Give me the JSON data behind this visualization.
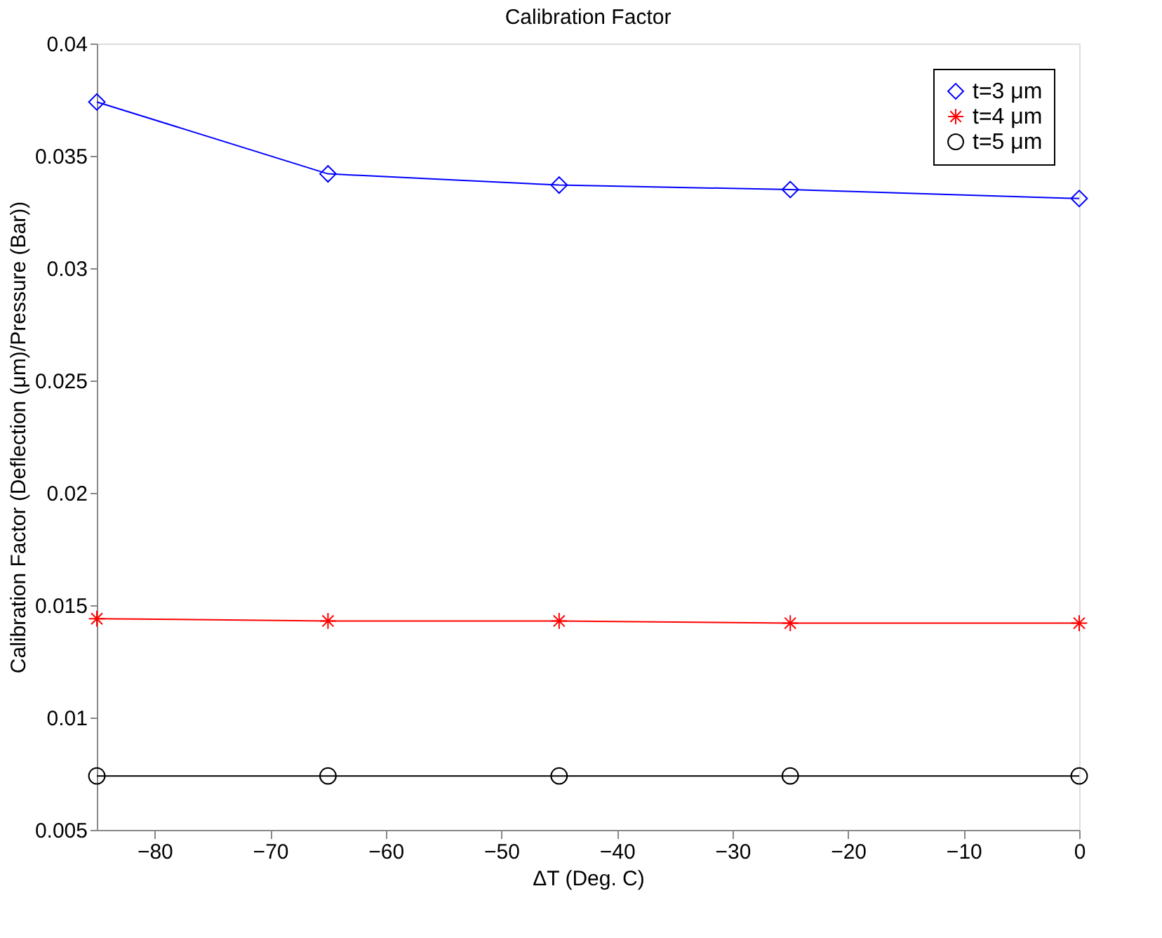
{
  "chart_data": {
    "type": "line",
    "title": "Calibration Factor",
    "xlabel": "ΔT (Deg. C)",
    "ylabel": "Calibration Factor (Deflection (μm)/Pressure (Bar))",
    "x": [
      -85,
      -65,
      -45,
      -25,
      0
    ],
    "series": [
      {
        "name": "t=3 μm",
        "color": "#0000ff",
        "marker": "diamond",
        "values": [
          0.0374,
          0.0342,
          0.0337,
          0.0335,
          0.0331
        ]
      },
      {
        "name": "t=4 μm",
        "color": "#ff0000",
        "marker": "cross",
        "values": [
          0.0144,
          0.0143,
          0.0143,
          0.0142,
          0.0142
        ]
      },
      {
        "name": "t=5 μm",
        "color": "#000000",
        "marker": "circle",
        "values": [
          0.0074,
          0.0074,
          0.0074,
          0.0074,
          0.0074
        ]
      }
    ],
    "xlim": [
      -85,
      0
    ],
    "xticks": [
      -80,
      -70,
      -60,
      -50,
      -40,
      -30,
      -20,
      -10,
      0
    ],
    "ylim": [
      0.005,
      0.04
    ],
    "yticks": [
      0.005,
      0.01,
      0.015,
      0.02,
      0.025,
      0.03,
      0.035,
      0.04
    ],
    "grid": false,
    "legend": "top right",
    "line_style": "solid"
  }
}
